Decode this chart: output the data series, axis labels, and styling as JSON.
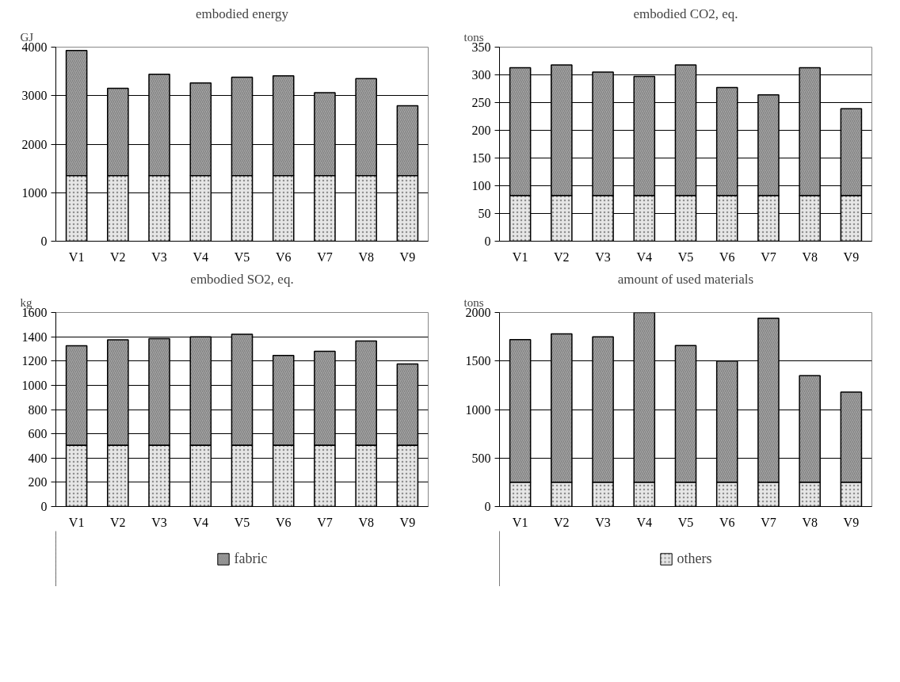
{
  "chart_data": [
    {
      "type": "bar",
      "stacked": true,
      "title": "embodied energy",
      "ylabel": "GJ",
      "categories": [
        "V1",
        "V2",
        "V3",
        "V4",
        "V5",
        "V6",
        "V7",
        "V8",
        "V9"
      ],
      "series": [
        {
          "color": "#e6e6e6",
          "values": [
            1350,
            1350,
            1350,
            1350,
            1350,
            1350,
            1350,
            1350,
            1350
          ]
        },
        {
          "color": "#a6a6a6",
          "values": [
            2580,
            1800,
            2090,
            1910,
            2030,
            2060,
            1710,
            2000,
            1440
          ]
        }
      ],
      "ylim": [
        0,
        4000
      ],
      "yticks": [
        0,
        1000,
        2000,
        3000,
        4000
      ],
      "grid": "y"
    },
    {
      "type": "bar",
      "stacked": true,
      "title": "embodied CO2, eq.",
      "ylabel": "tons",
      "categories": [
        "V1",
        "V2",
        "V3",
        "V4",
        "V5",
        "V6",
        "V7",
        "V8",
        "V9"
      ],
      "series": [
        {
          "color": "#e6e6e6",
          "values": [
            82,
            82,
            82,
            82,
            82,
            82,
            82,
            82,
            82
          ]
        },
        {
          "color": "#a6a6a6",
          "values": [
            231,
            236,
            223,
            215,
            236,
            195,
            182,
            231,
            157
          ]
        }
      ],
      "ylim": [
        0,
        350
      ],
      "yticks": [
        0,
        50,
        100,
        150,
        200,
        250,
        300,
        350
      ],
      "grid": "y"
    },
    {
      "type": "bar",
      "stacked": true,
      "title": "embodied SO2, eq.",
      "ylabel": "kg",
      "categories": [
        "V1",
        "V2",
        "V3",
        "V4",
        "V5",
        "V6",
        "V7",
        "V8",
        "V9"
      ],
      "series": [
        {
          "color": "#e6e6e6",
          "values": [
            505,
            505,
            505,
            505,
            505,
            505,
            505,
            505,
            505
          ]
        },
        {
          "name": "fabric",
          "color": "#a6a6a6",
          "values": [
            820,
            870,
            880,
            895,
            915,
            740,
            775,
            860,
            670
          ]
        }
      ],
      "ylim": [
        0,
        1600
      ],
      "yticks": [
        0,
        200,
        400,
        600,
        800,
        1000,
        1200,
        1400,
        1600
      ],
      "grid": "y",
      "legend": "bottom"
    },
    {
      "type": "bar",
      "stacked": true,
      "title": "amount of used materials",
      "ylabel": "tons",
      "categories": [
        "V1",
        "V2",
        "V3",
        "V4",
        "V5",
        "V6",
        "V7",
        "V8",
        "V9"
      ],
      "series": [
        {
          "name": "others",
          "color": "#e6e6e6",
          "values": [
            250,
            250,
            250,
            250,
            250,
            250,
            250,
            250,
            250
          ]
        },
        {
          "color": "#a6a6a6",
          "values": [
            1470,
            1530,
            1500,
            1750,
            1410,
            1250,
            1690,
            1100,
            930
          ]
        }
      ],
      "ylim": [
        0,
        2000
      ],
      "yticks": [
        0,
        500,
        1000,
        1500,
        2000
      ],
      "grid": "y",
      "legend": "bottom"
    }
  ]
}
